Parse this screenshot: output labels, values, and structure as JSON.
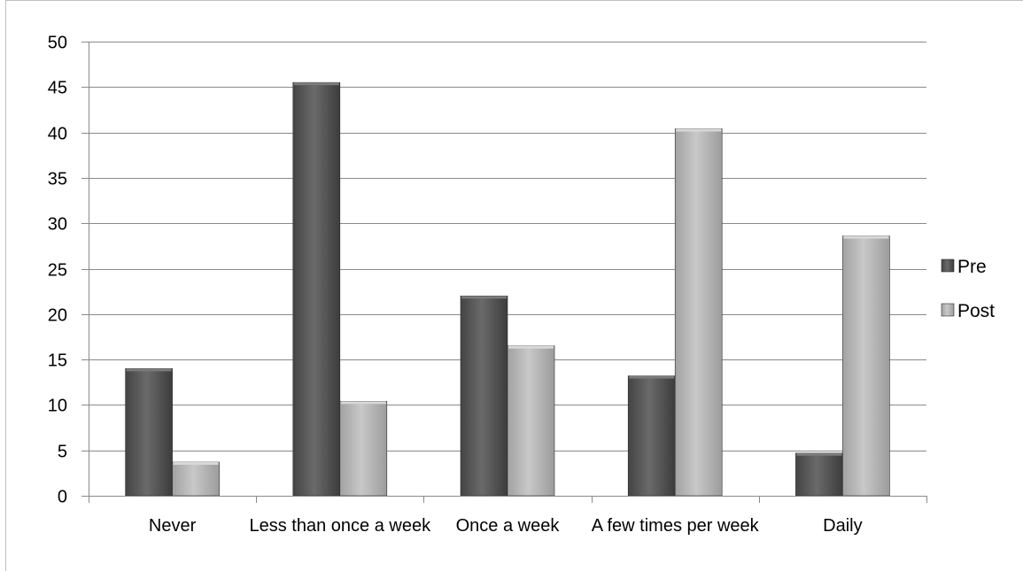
{
  "chart_data": {
    "type": "bar",
    "title": "",
    "xlabel": "",
    "ylabel": "",
    "categories": [
      "Never",
      "Less than once a week",
      "Once a week",
      "A few times per week",
      "Daily"
    ],
    "series": [
      {
        "name": "Pre",
        "values": [
          14,
          45.5,
          22,
          13.2,
          4.7
        ],
        "color": "#5a5a5a"
      },
      {
        "name": "Post",
        "values": [
          3.7,
          10.4,
          16.5,
          40.4,
          28.6
        ],
        "color": "#b4b4b4"
      }
    ],
    "ylim": [
      0,
      50
    ],
    "yticks": [
      0,
      5,
      10,
      15,
      20,
      25,
      30,
      35,
      40,
      45,
      50
    ],
    "grid": true,
    "legend": "right"
  }
}
